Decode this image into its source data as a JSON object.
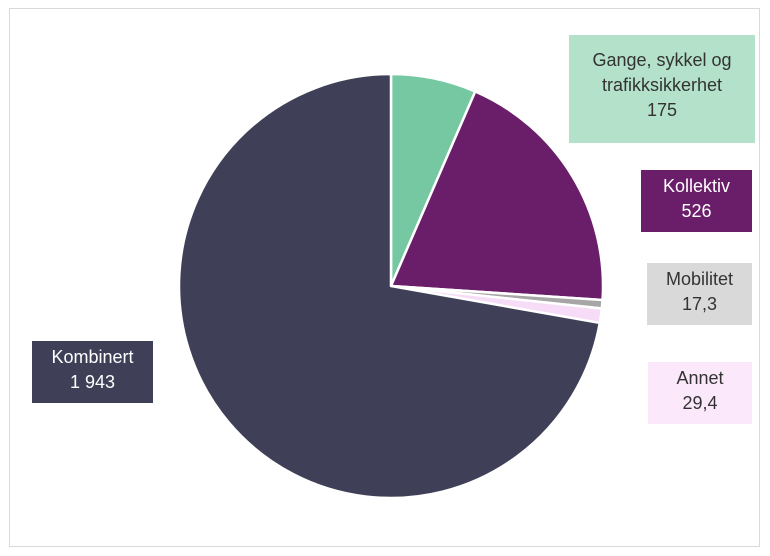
{
  "chart_data": {
    "type": "pie",
    "title": "",
    "start_angle_deg": 0,
    "direction": "clockwise",
    "slices": [
      {
        "name": "Gange, sykkel og trafikksikkerhet",
        "label_lines": [
          "Gange, sykkel og",
          "trafikksikkerhet",
          "175"
        ],
        "value": 175,
        "value_label": "175",
        "color": "#76c8a2",
        "label_bg": "#b3e1c9",
        "label_color": "#333333"
      },
      {
        "name": "Kollektiv",
        "label_lines": [
          "Kollektiv",
          "526"
        ],
        "value": 526,
        "value_label": "526",
        "color": "#6a1d69",
        "label_bg": "#6a1d69",
        "label_color": "#ffffff"
      },
      {
        "name": "Mobilitet",
        "label_lines": [
          "Mobilitet",
          "17,3"
        ],
        "value": 17.3,
        "value_label": "17,3",
        "color": "#a6a6a6",
        "label_bg": "#d9d9d9",
        "label_color": "#333333"
      },
      {
        "name": "Annet",
        "label_lines": [
          "Annet",
          "29,4"
        ],
        "value": 29.4,
        "value_label": "29,4",
        "color": "#f6dcf6",
        "label_bg": "#fbe9fb",
        "label_color": "#333333"
      },
      {
        "name": "Kombinert",
        "label_lines": [
          "Kombinert",
          "1 943"
        ],
        "value": 1943,
        "value_label": "1 943",
        "color": "#3f4058",
        "label_bg": "#3f4058",
        "label_color": "#ffffff"
      }
    ]
  }
}
